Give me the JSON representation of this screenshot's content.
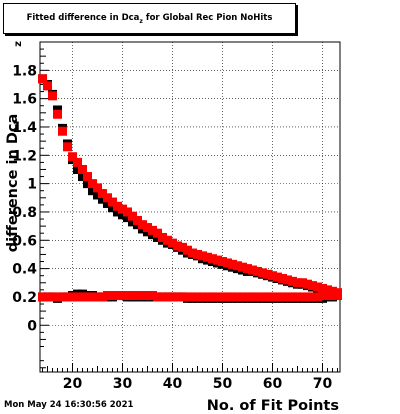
{
  "title": {
    "before": "Fitted difference in Dca",
    "subscript": "z",
    "after": "  for Global Rec Pion NoHits"
  },
  "timestamp": "Mon May 24 16:30:56 2021",
  "colors": {
    "series_1": "#000000",
    "series_2": "#ff0000",
    "grid": "#000000"
  },
  "chart_data": {
    "type": "scatter",
    "title": "Fitted difference in Dcaz  for Global Rec Pion NoHits",
    "xlabel": "No. of Fit Points",
    "ylabel": "difference in Dca",
    "ylabel_subscript": "z",
    "xlim": [
      13.5,
      73.5
    ],
    "ylim": [
      -0.33,
      2.0
    ],
    "xticks": [
      20,
      30,
      40,
      50,
      60,
      70
    ],
    "yticks": [
      0,
      0.2,
      0.4,
      0.6,
      0.8,
      1,
      1.2,
      1.4,
      1.6,
      1.8
    ],
    "grid": true,
    "x": [
      14,
      15,
      16,
      17,
      18,
      19,
      20,
      21,
      22,
      23,
      24,
      25,
      26,
      27,
      28,
      29,
      30,
      31,
      32,
      33,
      34,
      35,
      36,
      37,
      38,
      39,
      40,
      41,
      42,
      43,
      44,
      45,
      46,
      47,
      48,
      49,
      50,
      51,
      52,
      53,
      54,
      55,
      56,
      57,
      58,
      59,
      60,
      61,
      62,
      63,
      64,
      65,
      66,
      67,
      68,
      69,
      70,
      71,
      72,
      73
    ],
    "series": [
      {
        "name": "",
        "color": "#000000",
        "values": [
          1.74,
          1.7,
          1.63,
          1.52,
          1.39,
          1.28,
          1.17,
          1.1,
          1.05,
          1.0,
          0.95,
          0.92,
          0.89,
          0.86,
          0.83,
          0.8,
          0.78,
          0.76,
          0.73,
          0.71,
          0.68,
          0.66,
          0.64,
          0.62,
          0.6,
          0.58,
          0.57,
          0.55,
          0.53,
          0.51,
          0.5,
          0.49,
          0.47,
          0.46,
          0.45,
          0.44,
          0.43,
          0.42,
          0.41,
          0.4,
          0.39,
          0.38,
          0.38,
          0.37,
          0.36,
          0.35,
          0.34,
          0.33,
          0.32,
          0.31,
          0.3,
          0.29,
          0.29,
          0.28,
          0.27,
          0.26,
          0.25,
          0.24,
          0.23,
          0.22
        ]
      },
      {
        "name": "",
        "color": "#ff0000",
        "values": [
          1.74,
          1.69,
          1.62,
          1.49,
          1.37,
          1.26,
          1.19,
          1.15,
          1.1,
          1.05,
          1.0,
          0.97,
          0.93,
          0.9,
          0.87,
          0.84,
          0.82,
          0.8,
          0.77,
          0.74,
          0.71,
          0.69,
          0.67,
          0.65,
          0.62,
          0.6,
          0.58,
          0.56,
          0.55,
          0.53,
          0.51,
          0.5,
          0.49,
          0.48,
          0.47,
          0.46,
          0.45,
          0.44,
          0.43,
          0.42,
          0.41,
          0.4,
          0.39,
          0.38,
          0.37,
          0.36,
          0.35,
          0.34,
          0.33,
          0.32,
          0.31,
          0.3,
          0.3,
          0.29,
          0.28,
          0.27,
          0.26,
          0.25,
          0.24,
          0.23
        ]
      },
      {
        "name": "",
        "color": "#000000",
        "values": [
          0.2,
          0.2,
          0.2,
          0.19,
          0.2,
          0.2,
          0.21,
          0.22,
          0.22,
          0.21,
          0.21,
          0.2,
          0.2,
          0.2,
          0.2,
          0.21,
          0.21,
          0.2,
          0.2,
          0.2,
          0.2,
          0.2,
          0.2,
          0.2,
          0.2,
          0.2,
          0.2,
          0.2,
          0.2,
          0.19,
          0.19,
          0.19,
          0.19,
          0.19,
          0.19,
          0.19,
          0.19,
          0.19,
          0.19,
          0.19,
          0.19,
          0.19,
          0.19,
          0.19,
          0.19,
          0.19,
          0.19,
          0.19,
          0.19,
          0.19,
          0.19,
          0.19,
          0.19,
          0.19,
          0.19,
          0.19,
          0.19,
          0.2,
          0.2,
          0.21
        ]
      },
      {
        "name": "",
        "color": "#ff0000",
        "values": [
          0.2,
          0.2,
          0.2,
          0.2,
          0.2,
          0.2,
          0.2,
          0.2,
          0.2,
          0.2,
          0.2,
          0.2,
          0.2,
          0.21,
          0.21,
          0.21,
          0.21,
          0.21,
          0.21,
          0.21,
          0.21,
          0.21,
          0.21,
          0.2,
          0.2,
          0.2,
          0.2,
          0.2,
          0.2,
          0.2,
          0.2,
          0.2,
          0.2,
          0.2,
          0.2,
          0.2,
          0.2,
          0.2,
          0.2,
          0.2,
          0.2,
          0.2,
          0.2,
          0.2,
          0.2,
          0.2,
          0.2,
          0.2,
          0.2,
          0.2,
          0.2,
          0.2,
          0.2,
          0.2,
          0.2,
          0.2,
          0.21,
          0.21,
          0.21,
          0.21
        ]
      }
    ]
  }
}
